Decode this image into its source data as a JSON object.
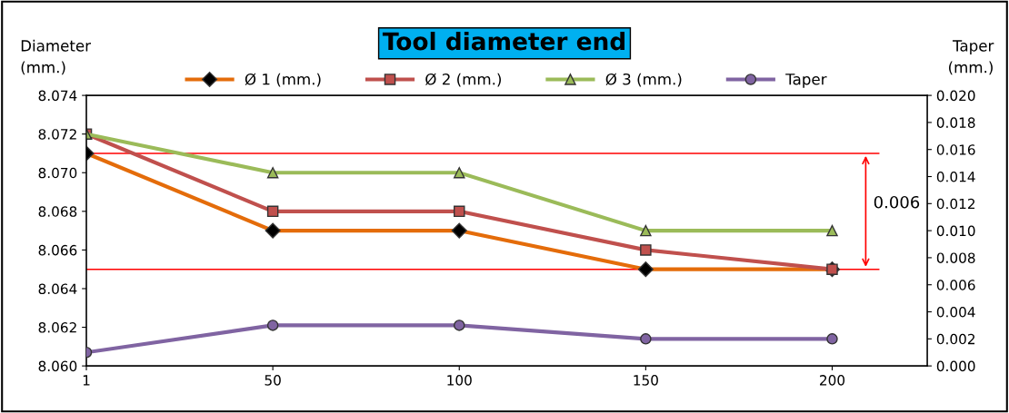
{
  "chart_data": {
    "type": "line",
    "title": "Tool diameter end",
    "ylabel": "Diameter\n(mm.)",
    "y2label": "Taper\n(mm.)",
    "categories": [
      "1",
      "50",
      "100",
      "150",
      "200"
    ],
    "series": [
      {
        "name": "Ø 1 (mm.)",
        "color": "#e46c0a",
        "marker": "diamond",
        "values": [
          8.071,
          8.067,
          8.067,
          8.065,
          8.065
        ]
      },
      {
        "name": "Ø 2 (mm.)",
        "color": "#c0504d",
        "marker": "square",
        "values": [
          8.072,
          8.068,
          8.068,
          8.066,
          8.065
        ]
      },
      {
        "name": "Ø 3 (mm.)",
        "color": "#9bbb59",
        "marker": "triangle",
        "values": [
          8.072,
          8.07,
          8.07,
          8.067,
          8.067
        ]
      },
      {
        "name": "Taper",
        "color": "#8064a2",
        "marker": "circle",
        "axis": "y2",
        "values": [
          0.001,
          0.003,
          0.003,
          0.002,
          0.002
        ]
      }
    ],
    "ylim": [
      8.06,
      8.074
    ],
    "yticks": [
      {
        "value": 8.06,
        "label": "8.060"
      },
      8.062,
      8.064,
      8.066,
      8.068,
      {
        "value": 8.07,
        "label": "8.070"
      },
      8.072,
      8.074
    ],
    "y2lim": [
      0.0,
      0.02
    ],
    "y2ticks": [
      {
        "value": 0.0,
        "label": "0.000"
      },
      0.002,
      0.004,
      0.006,
      0.008,
      {
        "value": 0.01,
        "label": "0.010"
      },
      0.012,
      0.014,
      0.016,
      0.018,
      {
        "value": 0.02,
        "label": "0.020"
      }
    ],
    "ref_lines": [
      {
        "axis": "y",
        "value": 8.071,
        "color": "#ff0000"
      },
      {
        "axis": "y",
        "value": 8.065,
        "color": "#ff0000"
      }
    ],
    "annotations": [
      "0.006"
    ],
    "legend": "top",
    "grid": false
  }
}
